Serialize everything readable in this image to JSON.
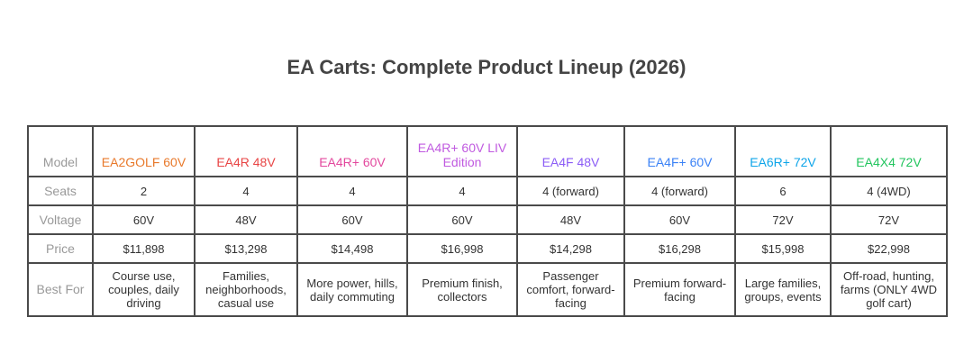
{
  "title": "EA Carts: Complete Product Lineup (2026)",
  "row_labels": [
    "Model",
    "Seats",
    "Voltage",
    "Price",
    "Best For"
  ],
  "models": [
    {
      "name": "EA2GOLF 60V",
      "color": "#e8792b",
      "seats": "2",
      "voltage": "60V",
      "price": "$11,898",
      "best_for": "Course use, couples, daily driving"
    },
    {
      "name": "EA4R 48V",
      "color": "#e84545",
      "seats": "4",
      "voltage": "48V",
      "price": "$13,298",
      "best_for": "Families, neighborhoods, casual use"
    },
    {
      "name": "EA4R+ 60V",
      "color": "#e3489e",
      "seats": "4",
      "voltage": "60V",
      "price": "$14,498",
      "best_for": "More power, hills, daily commuting"
    },
    {
      "name": "EA4R+ 60V LIV Edition",
      "color": "#c05ae0",
      "seats": "4",
      "voltage": "60V",
      "price": "$16,998",
      "best_for": "Premium finish, collectors"
    },
    {
      "name": "EA4F 48V",
      "color": "#8b5cf6",
      "seats": "4 (forward)",
      "voltage": "48V",
      "price": "$14,298",
      "best_for": "Passenger comfort, forward-facing"
    },
    {
      "name": "EA4F+ 60V",
      "color": "#3b82f6",
      "seats": "4 (forward)",
      "voltage": "60V",
      "price": "$16,298",
      "best_for": "Premium forward-facing"
    },
    {
      "name": "EA6R+ 72V",
      "color": "#0ea5e9",
      "seats": "6",
      "voltage": "72V",
      "price": "$15,998",
      "best_for": "Large families, groups, events"
    },
    {
      "name": "EA4X4 72V",
      "color": "#22c55e",
      "seats": "4 (4WD)",
      "voltage": "72V",
      "price": "$22,998",
      "best_for": "Off-road, hunting, farms (ONLY 4WD golf cart)"
    }
  ]
}
